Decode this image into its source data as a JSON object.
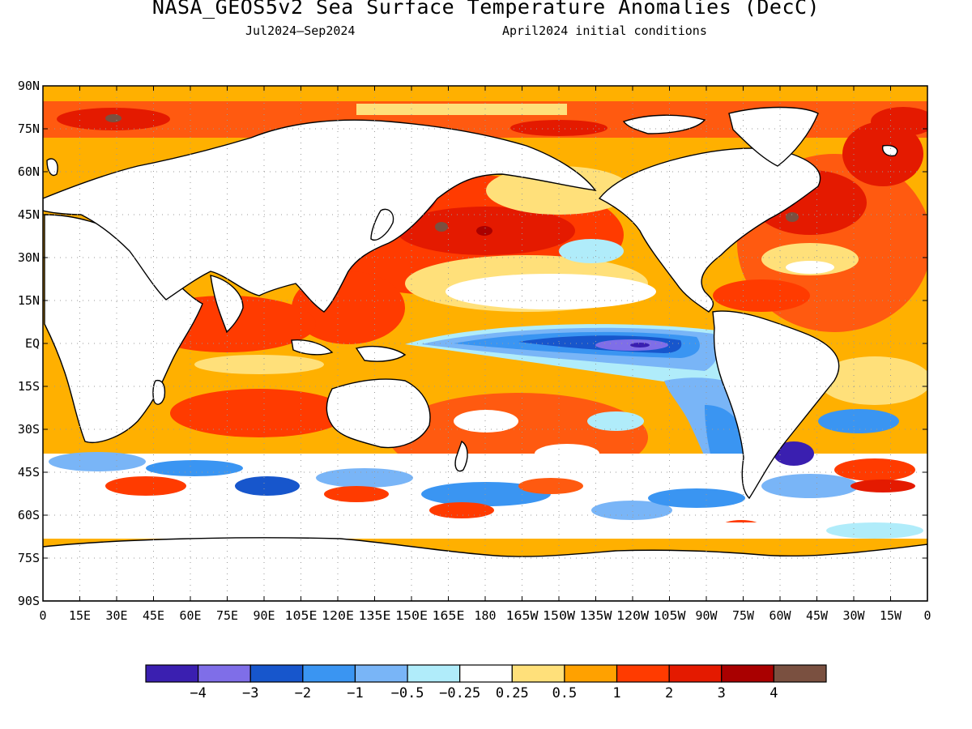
{
  "title": "NASA_GEOS5v2 Sea Surface Temperature Anomalies (DecC)",
  "subtitle_period": "Jul2024—Sep2024",
  "subtitle_init": "April2024 initial conditions",
  "lat_labels": [
    "90N",
    "75N",
    "60N",
    "45N",
    "30N",
    "15N",
    "EQ",
    "15S",
    "30S",
    "45S",
    "60S",
    "75S",
    "90S"
  ],
  "lon_labels": [
    "0",
    "15E",
    "30E",
    "45E",
    "60E",
    "75E",
    "90E",
    "105E",
    "120E",
    "135E",
    "150E",
    "165E",
    "180",
    "165W",
    "150W",
    "135W",
    "120W",
    "105W",
    "90W",
    "75W",
    "60W",
    "45W",
    "30W",
    "15W",
    "0"
  ],
  "colorbar": {
    "colors": [
      "#3a1fb0",
      "#7f6ee8",
      "#1756cc",
      "#3a95f2",
      "#79b5f7",
      "#b0ecfa",
      "#ffffff",
      "#ffe07a",
      "#ffa100",
      "#ff3b00",
      "#e41a00",
      "#a90000",
      "#7a5040"
    ],
    "labels": [
      "−4",
      "−3",
      "−2",
      "−1",
      "−0.5",
      "−0.25",
      "0.25",
      "0.5",
      "1",
      "2",
      "3",
      "4"
    ]
  },
  "colors": {
    "land": "#ffffff",
    "coast": "#000000",
    "grid": "#9a9a9a"
  }
}
